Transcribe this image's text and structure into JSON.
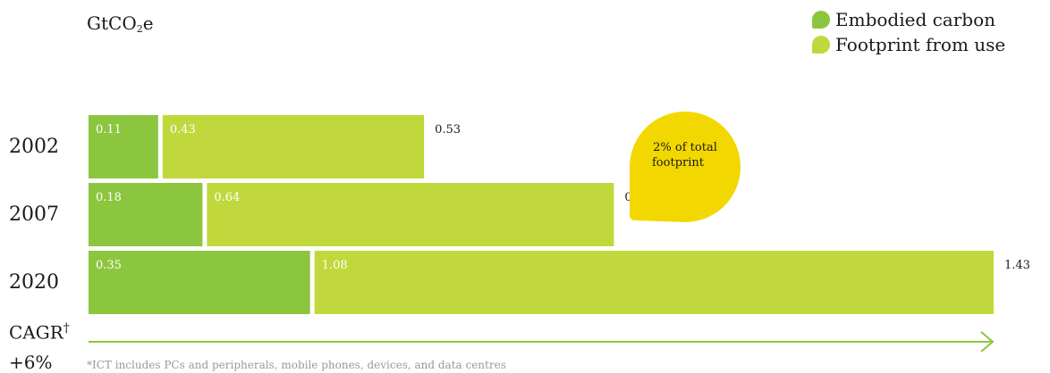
{
  "chart_data": {
    "type": "bar",
    "orientation": "horizontal",
    "stacked": true,
    "unit": "GtCO",
    "unit_sub": "2",
    "unit_suffix": "e",
    "categories": [
      "2002",
      "2007",
      "2020"
    ],
    "series": [
      {
        "name": "Embodied carbon",
        "values": [
          0.11,
          0.18,
          0.35
        ],
        "color": "#8cc63f"
      },
      {
        "name": "Footprint from use",
        "values": [
          0.43,
          0.64,
          1.08
        ],
        "color": "#c0d83b"
      }
    ],
    "segment_labels": [
      [
        "0.11",
        "0.43"
      ],
      [
        "0.18",
        "0.64"
      ],
      [
        "0.35",
        "1.08"
      ]
    ],
    "totals": [
      0.53,
      0.83,
      1.43
    ],
    "total_labels": [
      "0.53",
      "0.83",
      "1.43"
    ],
    "xlim": [
      0,
      1.43
    ],
    "legend_position": "top-right",
    "grid": false,
    "annotation": {
      "line1": "2% of total",
      "line2": "footprint",
      "color": "#f2d800"
    }
  },
  "cagr": {
    "label": "CAGR",
    "mark": "†",
    "value": "+6%",
    "arrow_color": "#8cc63f"
  },
  "footnote": "*ICT includes PCs and peripherals, mobile phones, devices, and data centres"
}
